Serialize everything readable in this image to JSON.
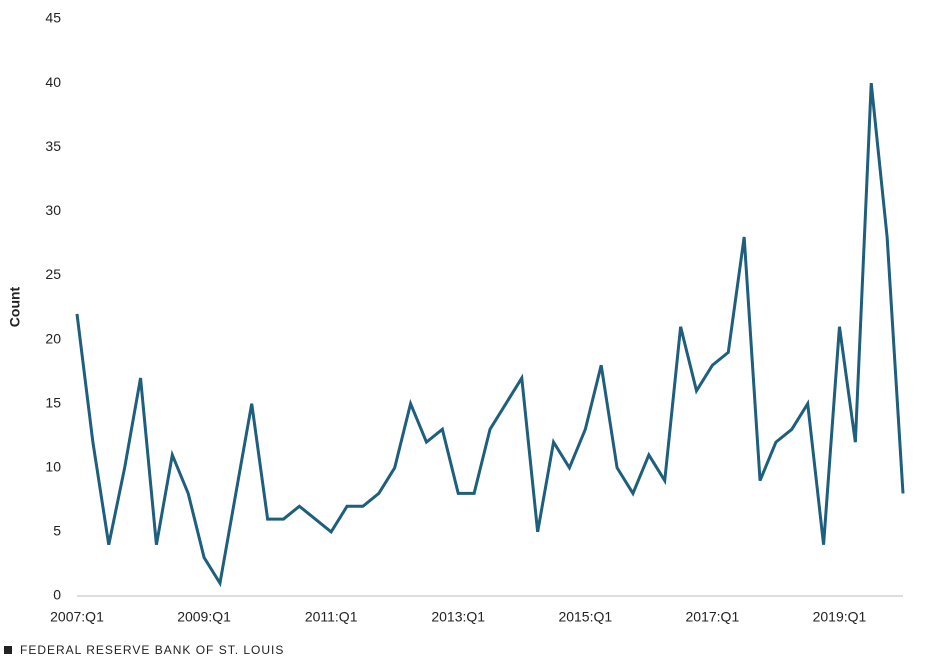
{
  "chart_data": {
    "type": "line",
    "y_label": "Count",
    "footer": "FEDERAL RESERVE BANK OF ST. LOUIS",
    "categories": [
      "2007:Q1",
      null,
      null,
      null,
      null,
      null,
      null,
      null,
      "2009:Q1",
      null,
      null,
      null,
      null,
      null,
      null,
      null,
      "2011:Q1",
      null,
      null,
      null,
      null,
      null,
      null,
      null,
      "2013:Q1",
      null,
      null,
      null,
      null,
      null,
      null,
      null,
      "2015:Q1",
      null,
      null,
      null,
      null,
      null,
      null,
      null,
      "2017:Q1",
      null,
      null,
      null,
      null,
      null,
      null,
      null,
      "2019:Q1",
      null,
      null,
      null,
      null
    ],
    "values": [
      22,
      12,
      4,
      10,
      17,
      4,
      11,
      8,
      3,
      1,
      8,
      15,
      6,
      6,
      7,
      6,
      5,
      7,
      7,
      8,
      10,
      15,
      12,
      13,
      8,
      8,
      13,
      15,
      17,
      5,
      12,
      10,
      13,
      18,
      10,
      8,
      11,
      9,
      21,
      16,
      18,
      19,
      28,
      9,
      12,
      13,
      15,
      4,
      21,
      12,
      40,
      28,
      8
    ],
    "color": "#1d5f7c",
    "ylim": [
      0,
      45
    ],
    "yticks": [
      0,
      5,
      10,
      15,
      20,
      25,
      30,
      35,
      40,
      45
    ],
    "grid": false
  }
}
